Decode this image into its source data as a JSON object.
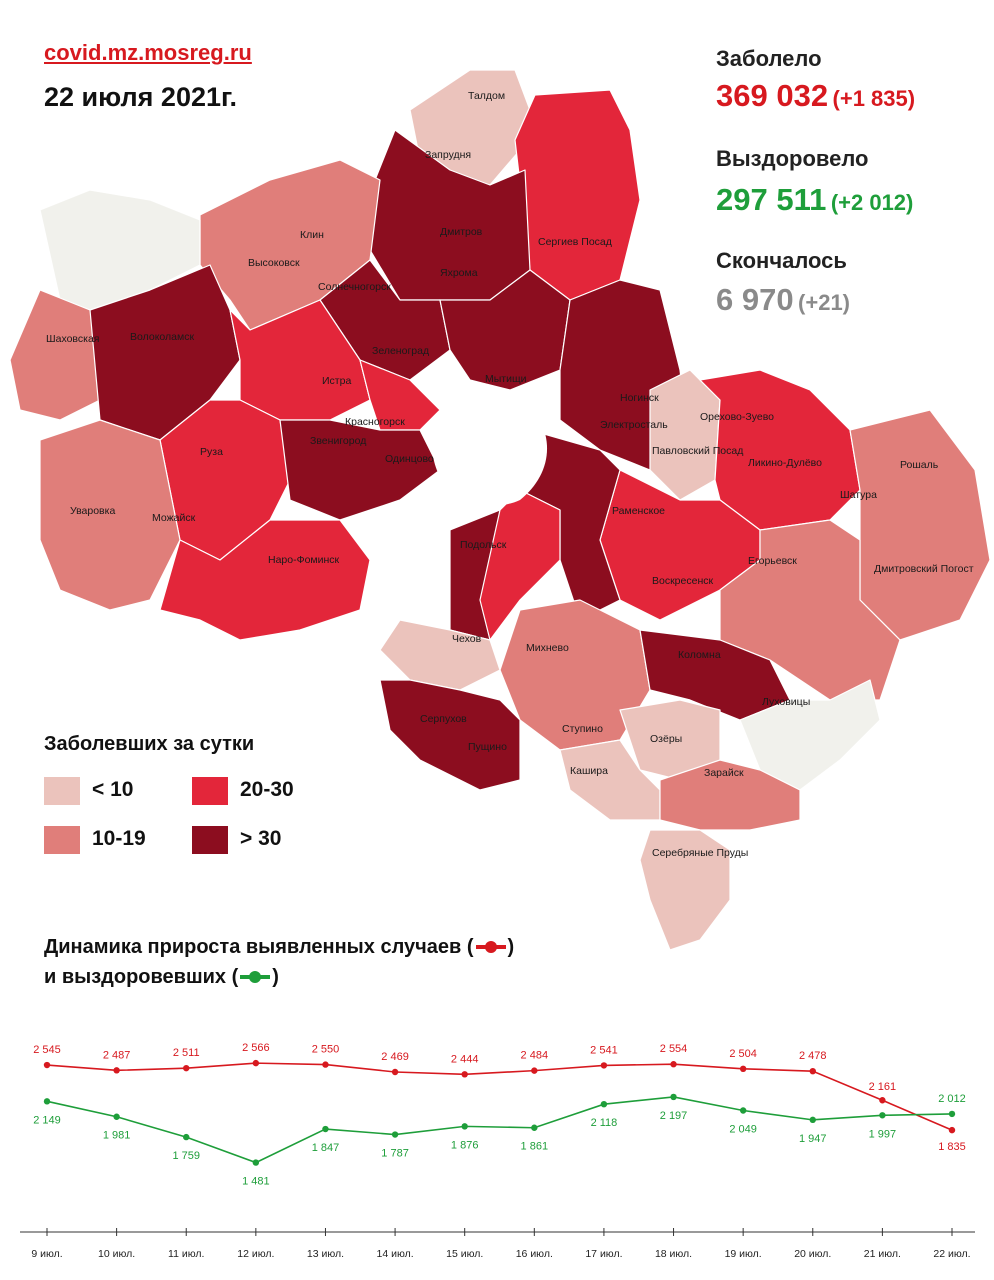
{
  "header": {
    "site": "covid.mz.mosreg.ru",
    "date": "22 июля 2021г."
  },
  "stats": {
    "infected": {
      "label": "Заболело",
      "value": "369 032",
      "delta": "(+1 835)"
    },
    "recovered": {
      "label": "Выздоровело",
      "value": "297 511",
      "delta": "(+2 012)"
    },
    "died": {
      "label": "Скончалось",
      "value": "6 970",
      "delta": "(+21)"
    }
  },
  "colors": {
    "lt10": "#ebc3bc",
    "r10_19": "#e07e7a",
    "r20_30": "#e3263a",
    "gt30": "#8c0d1f",
    "nodata": "#f1f1ec",
    "infected_line": "#d7191f",
    "recovered_line": "#1e9e3a"
  },
  "map": {
    "labels": [
      "Талдом",
      "Запрудня",
      "Дмитров",
      "Яхрома",
      "Сергиев Посад",
      "Клин",
      "Высоковск",
      "Солнечногорск",
      "Шаховская",
      "Волоколамск",
      "Зеленоград",
      "Истра",
      "Мытищи",
      "Красногорск",
      "Звенигород",
      "Одинцово",
      "Ногинск",
      "Электросталь",
      "Павловский Посад",
      "Орехово-Зуево",
      "Ликино-Дулёво",
      "Рошаль",
      "Шатура",
      "Руза",
      "Уваровка",
      "Можайск",
      "Раменское",
      "Наро-Фоминск",
      "Подольск",
      "Воскресенск",
      "Егорьевск",
      "Дмитровский Погост",
      "Чехов",
      "Михнево",
      "Коломна",
      "Луховицы",
      "Серпухов",
      "Пущино",
      "Ступино",
      "Озёры",
      "Кашира",
      "Зарайск",
      "Серебряные Пруды"
    ]
  },
  "legend": {
    "title": "Заболевших за сутки",
    "items": [
      {
        "key": "lt10",
        "label": "< 10"
      },
      {
        "key": "r20_30",
        "label": "20-30"
      },
      {
        "key": "r10_19",
        "label": "10-19"
      },
      {
        "key": "gt30",
        "label": "> 30"
      }
    ]
  },
  "dynamics": {
    "title_line1": "Динамика прироста выявленных случаев (",
    "title_line1_end": ")",
    "title_line2": "и выздоровевших (",
    "title_line2_end": ")"
  },
  "chart_data": {
    "type": "line",
    "x": [
      "9 июл.",
      "10 июл.",
      "11 июл.",
      "12 июл.",
      "13 июл.",
      "14 июл.",
      "15 июл.",
      "16 июл.",
      "17 июл.",
      "18 июл.",
      "19 июл.",
      "20 июл.",
      "21 июл.",
      "22 июл."
    ],
    "series": [
      {
        "key": "infected",
        "values": [
          2545,
          2487,
          2511,
          2566,
          2550,
          2469,
          2444,
          2484,
          2541,
          2554,
          2504,
          2478,
          2161,
          1835
        ],
        "labels": [
          "2 545",
          "2 487",
          "2 511",
          "2 566",
          "2 550",
          "2 469",
          "2 444",
          "2 484",
          "2 541",
          "2 554",
          "2 504",
          "2 478",
          "2 161",
          "1 835"
        ]
      },
      {
        "key": "recovered",
        "values": [
          2149,
          1981,
          1759,
          1481,
          1847,
          1787,
          1876,
          1861,
          2118,
          2197,
          2049,
          1947,
          1997,
          2012
        ],
        "labels": [
          "2 149",
          "1 981",
          "1 759",
          "1 481",
          "1 847",
          "1 787",
          "1 876",
          "1 861",
          "2 118",
          "2 197",
          "2 049",
          "1 947",
          "1 997",
          "2 012"
        ]
      }
    ]
  }
}
